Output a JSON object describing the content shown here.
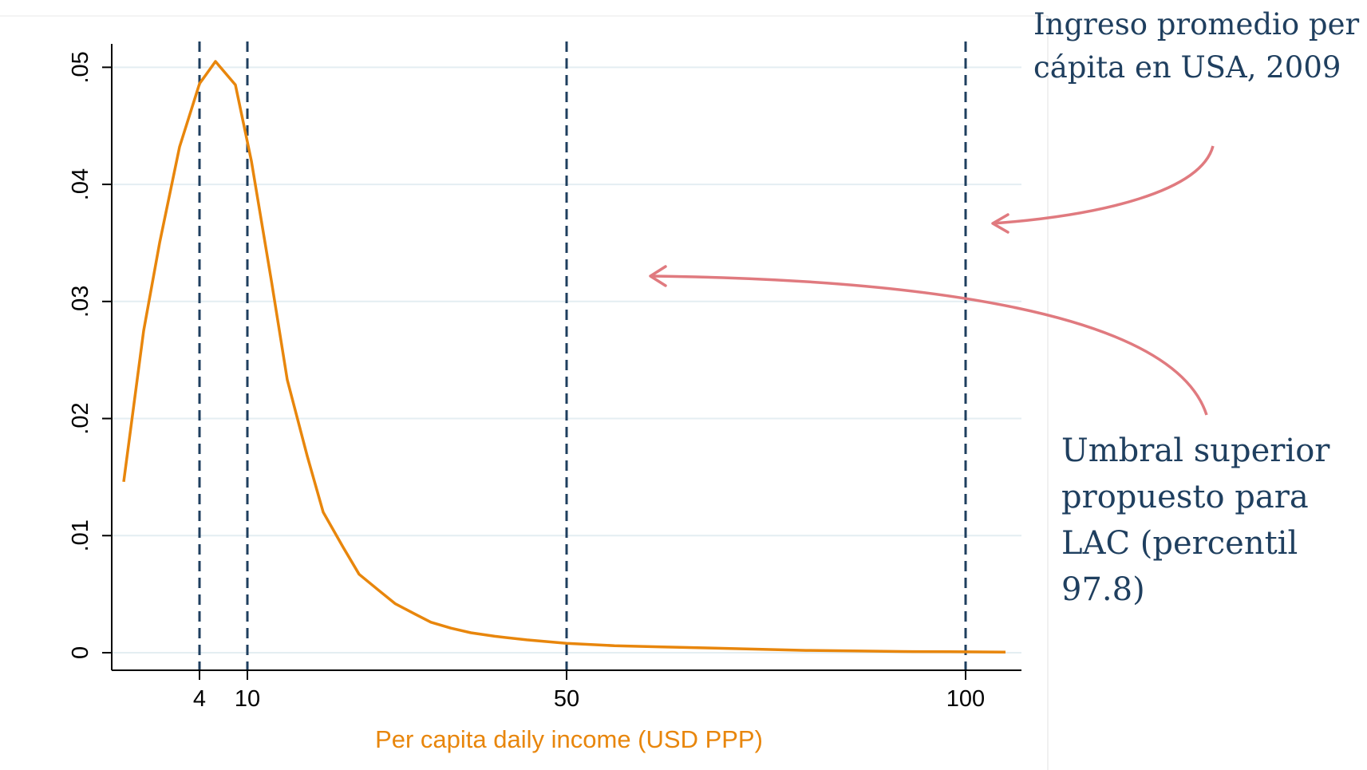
{
  "chart_data": {
    "type": "line",
    "title": "",
    "xlabel": "Per capita daily income (USD PPP)",
    "ylabel": "",
    "xlim": [
      -7,
      107
    ],
    "ylim": [
      -0.0015,
      0.052
    ],
    "xticks": [
      4,
      10,
      50,
      100
    ],
    "xtick_labels": [
      "4",
      "10",
      "50",
      "100"
    ],
    "yticks": [
      0,
      0.01,
      0.02,
      0.03,
      0.04,
      0.05
    ],
    "ytick_labels": [
      "0",
      ".01",
      ".02",
      ".03",
      ".04",
      ".05"
    ],
    "grid": true,
    "vlines": [
      4,
      10,
      50,
      100
    ],
    "series": [
      {
        "x": [
          -5.5,
          -3.0,
          -1.0,
          1.5,
          4.0,
          6.0,
          8.5,
          10.5,
          13.0,
          15.0,
          17.5,
          19.5,
          22.0,
          24.0,
          26.5,
          28.5,
          31.0,
          33.0,
          35.5,
          38.0,
          41.0,
          45.0,
          50.0,
          56.0,
          62.0,
          68.0,
          74.0,
          80.0,
          86.0,
          92.0,
          98.0,
          105.0
        ],
        "y": [
          0.0146,
          0.0275,
          0.035,
          0.0432,
          0.0486,
          0.0505,
          0.0485,
          0.042,
          0.0318,
          0.0233,
          0.0168,
          0.012,
          0.009,
          0.0067,
          0.0053,
          0.0042,
          0.0033,
          0.0026,
          0.0021,
          0.0017,
          0.0014,
          0.0011,
          0.0008,
          0.0006,
          0.0005,
          0.0004,
          0.0003,
          0.0002,
          0.00015,
          0.0001,
          8e-05,
          5e-05
        ],
        "color": "#e8860c"
      }
    ],
    "colors": {
      "curve": "#e8860c",
      "vline": "#1f3f5f",
      "grid": "#e4eef2",
      "arrow": "#e07a7f",
      "annotation": "#1f3f5f",
      "xlabel": "#e8860c"
    }
  },
  "annotations": {
    "usa": [
      "Ingreso promedio per",
      "cápita en USA, 2009"
    ],
    "lac": [
      "Umbral superior",
      "propuesto para",
      "LAC (percentil",
      "97.8)"
    ]
  }
}
